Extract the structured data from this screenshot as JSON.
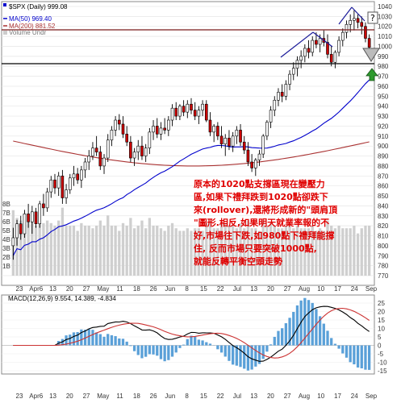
{
  "chart_data": {
    "type": "candlestick",
    "title": "$SPX (Daily) 999.08",
    "legend": [
      {
        "label": "MA(50) 969.40",
        "color": "#0000cc"
      },
      {
        "label": "MA(200) 881.52",
        "color": "#aa3333"
      },
      {
        "label": "Volume Undr",
        "color": "#999999"
      }
    ],
    "y_axis": {
      "range": [
        770,
        1040
      ],
      "ticks": [
        1040,
        1030,
        1020,
        1010,
        1000,
        990,
        980,
        970,
        960,
        950,
        940,
        930,
        920,
        910,
        900,
        890,
        880,
        870,
        860,
        850,
        840,
        830,
        820,
        810,
        800,
        790,
        780,
        770
      ]
    },
    "volume_axis": {
      "ticks": [
        "8B",
        "7B",
        "6B",
        "5B",
        "4B",
        "3B",
        "2B",
        "1B"
      ]
    },
    "x_axis": {
      "labels": [
        "23",
        "Apr6",
        "13",
        "20",
        "27",
        "May",
        "11",
        "18",
        "26",
        "Jun",
        "8",
        "15",
        "22",
        "Jul",
        "13",
        "20",
        "27",
        "Aug",
        "10",
        "17",
        "24",
        "Sep"
      ]
    },
    "candles": [
      {
        "o": 800,
        "h": 818,
        "l": 786,
        "c": 808
      },
      {
        "o": 808,
        "h": 826,
        "l": 800,
        "c": 822
      },
      {
        "o": 822,
        "h": 830,
        "l": 806,
        "c": 812
      },
      {
        "o": 812,
        "h": 836,
        "l": 808,
        "c": 832
      },
      {
        "o": 832,
        "h": 842,
        "l": 818,
        "c": 824
      },
      {
        "o": 824,
        "h": 840,
        "l": 812,
        "c": 834
      },
      {
        "o": 834,
        "h": 838,
        "l": 818,
        "c": 822
      },
      {
        "o": 822,
        "h": 845,
        "l": 818,
        "c": 842
      },
      {
        "o": 842,
        "h": 852,
        "l": 830,
        "c": 838
      },
      {
        "o": 838,
        "h": 858,
        "l": 834,
        "c": 854
      },
      {
        "o": 854,
        "h": 870,
        "l": 848,
        "c": 866
      },
      {
        "o": 866,
        "h": 872,
        "l": 852,
        "c": 858
      },
      {
        "o": 858,
        "h": 874,
        "l": 850,
        "c": 870
      },
      {
        "o": 870,
        "h": 876,
        "l": 842,
        "c": 848
      },
      {
        "o": 848,
        "h": 862,
        "l": 842,
        "c": 856
      },
      {
        "o": 856,
        "h": 872,
        "l": 852,
        "c": 868
      },
      {
        "o": 868,
        "h": 880,
        "l": 860,
        "c": 872
      },
      {
        "o": 872,
        "h": 878,
        "l": 862,
        "c": 866
      },
      {
        "o": 866,
        "h": 880,
        "l": 858,
        "c": 876
      },
      {
        "o": 876,
        "h": 888,
        "l": 868,
        "c": 884
      },
      {
        "o": 884,
        "h": 896,
        "l": 876,
        "c": 890
      },
      {
        "o": 890,
        "h": 904,
        "l": 886,
        "c": 898
      },
      {
        "o": 898,
        "h": 910,
        "l": 890,
        "c": 894
      },
      {
        "o": 894,
        "h": 900,
        "l": 876,
        "c": 880
      },
      {
        "o": 880,
        "h": 892,
        "l": 872,
        "c": 888
      },
      {
        "o": 888,
        "h": 912,
        "l": 884,
        "c": 906
      },
      {
        "o": 906,
        "h": 920,
        "l": 900,
        "c": 916
      },
      {
        "o": 916,
        "h": 930,
        "l": 910,
        "c": 926
      },
      {
        "o": 926,
        "h": 932,
        "l": 916,
        "c": 922
      },
      {
        "o": 922,
        "h": 930,
        "l": 908,
        "c": 912
      },
      {
        "o": 912,
        "h": 920,
        "l": 900,
        "c": 904
      },
      {
        "o": 904,
        "h": 910,
        "l": 884,
        "c": 888
      },
      {
        "o": 888,
        "h": 898,
        "l": 880,
        "c": 894
      },
      {
        "o": 894,
        "h": 906,
        "l": 886,
        "c": 900
      },
      {
        "o": 900,
        "h": 910,
        "l": 886,
        "c": 890
      },
      {
        "o": 890,
        "h": 902,
        "l": 884,
        "c": 898
      },
      {
        "o": 898,
        "h": 918,
        "l": 892,
        "c": 914
      },
      {
        "o": 914,
        "h": 926,
        "l": 906,
        "c": 920
      },
      {
        "o": 920,
        "h": 928,
        "l": 908,
        "c": 912
      },
      {
        "o": 912,
        "h": 924,
        "l": 906,
        "c": 918
      },
      {
        "o": 918,
        "h": 928,
        "l": 912,
        "c": 916
      },
      {
        "o": 916,
        "h": 930,
        "l": 910,
        "c": 926
      },
      {
        "o": 926,
        "h": 942,
        "l": 920,
        "c": 938
      },
      {
        "o": 938,
        "h": 944,
        "l": 926,
        "c": 930
      },
      {
        "o": 930,
        "h": 942,
        "l": 926,
        "c": 940
      },
      {
        "o": 940,
        "h": 946,
        "l": 930,
        "c": 934
      },
      {
        "o": 934,
        "h": 946,
        "l": 928,
        "c": 942
      },
      {
        "o": 942,
        "h": 948,
        "l": 932,
        "c": 936
      },
      {
        "o": 936,
        "h": 944,
        "l": 926,
        "c": 930
      },
      {
        "o": 930,
        "h": 940,
        "l": 922,
        "c": 936
      },
      {
        "o": 936,
        "h": 946,
        "l": 930,
        "c": 942
      },
      {
        "o": 942,
        "h": 946,
        "l": 924,
        "c": 926
      },
      {
        "o": 926,
        "h": 934,
        "l": 910,
        "c": 914
      },
      {
        "o": 914,
        "h": 922,
        "l": 904,
        "c": 920
      },
      {
        "o": 920,
        "h": 924,
        "l": 906,
        "c": 910
      },
      {
        "o": 910,
        "h": 920,
        "l": 898,
        "c": 902
      },
      {
        "o": 902,
        "h": 912,
        "l": 890,
        "c": 908
      },
      {
        "o": 908,
        "h": 916,
        "l": 896,
        "c": 900
      },
      {
        "o": 900,
        "h": 914,
        "l": 894,
        "c": 910
      },
      {
        "o": 910,
        "h": 920,
        "l": 902,
        "c": 916
      },
      {
        "o": 916,
        "h": 922,
        "l": 900,
        "c": 904
      },
      {
        "o": 904,
        "h": 910,
        "l": 892,
        "c": 896
      },
      {
        "o": 896,
        "h": 904,
        "l": 880,
        "c": 884
      },
      {
        "o": 884,
        "h": 892,
        "l": 874,
        "c": 878
      },
      {
        "o": 878,
        "h": 888,
        "l": 870,
        "c": 886
      },
      {
        "o": 886,
        "h": 896,
        "l": 880,
        "c": 892
      },
      {
        "o": 892,
        "h": 912,
        "l": 888,
        "c": 910
      },
      {
        "o": 910,
        "h": 926,
        "l": 906,
        "c": 924
      },
      {
        "o": 924,
        "h": 940,
        "l": 918,
        "c": 936
      },
      {
        "o": 936,
        "h": 950,
        "l": 930,
        "c": 946
      },
      {
        "o": 946,
        "h": 958,
        "l": 940,
        "c": 954
      },
      {
        "o": 954,
        "h": 962,
        "l": 944,
        "c": 950
      },
      {
        "o": 950,
        "h": 966,
        "l": 946,
        "c": 962
      },
      {
        "o": 962,
        "h": 976,
        "l": 956,
        "c": 972
      },
      {
        "o": 972,
        "h": 984,
        "l": 966,
        "c": 978
      },
      {
        "o": 978,
        "h": 990,
        "l": 970,
        "c": 986
      },
      {
        "o": 986,
        "h": 996,
        "l": 978,
        "c": 990
      },
      {
        "o": 990,
        "h": 1002,
        "l": 984,
        "c": 998
      },
      {
        "o": 998,
        "h": 1006,
        "l": 988,
        "c": 994
      },
      {
        "o": 994,
        "h": 1010,
        "l": 990,
        "c": 1006
      },
      {
        "o": 1006,
        "h": 1014,
        "l": 998,
        "c": 1002
      },
      {
        "o": 1002,
        "h": 1012,
        "l": 994,
        "c": 1008
      },
      {
        "o": 1008,
        "h": 1016,
        "l": 1000,
        "c": 1004
      },
      {
        "o": 1004,
        "h": 1012,
        "l": 988,
        "c": 992
      },
      {
        "o": 992,
        "h": 1000,
        "l": 980,
        "c": 984
      },
      {
        "o": 984,
        "h": 996,
        "l": 978,
        "c": 994
      },
      {
        "o": 994,
        "h": 1010,
        "l": 990,
        "c": 1006
      },
      {
        "o": 1006,
        "h": 1018,
        "l": 1000,
        "c": 1014
      },
      {
        "o": 1014,
        "h": 1026,
        "l": 1008,
        "c": 1022
      },
      {
        "o": 1022,
        "h": 1032,
        "l": 1014,
        "c": 1026
      },
      {
        "o": 1026,
        "h": 1036,
        "l": 1016,
        "c": 1028
      },
      {
        "o": 1028,
        "h": 1032,
        "l": 1018,
        "c": 1024
      },
      {
        "o": 1024,
        "h": 1030,
        "l": 1012,
        "c": 1020
      },
      {
        "o": 1020,
        "h": 1024,
        "l": 1004,
        "c": 1008
      },
      {
        "o": 1008,
        "h": 1012,
        "l": 992,
        "c": 999
      }
    ],
    "annotations": {
      "lines": [
        "1020",
        "980"
      ],
      "text": "原本的1020點支撐區現在變壓力區,如果下禮拜跌到1020點卻跌下來(rollover),還將形成新的\"頭肩頂\"圖形.相反,如果明天就業率報的不好,市場往下跌,如980點下禮拜能撐住, 反而市場只要突破1000點,就能反轉平衡空頭走勢"
    },
    "macd": {
      "label": "MACD(12,26,9) 9.554, 14.389, -4.834",
      "y_ticks": [
        "25",
        "20",
        "15",
        "10",
        "5",
        "0",
        "-5",
        "-10",
        "-15"
      ]
    }
  }
}
